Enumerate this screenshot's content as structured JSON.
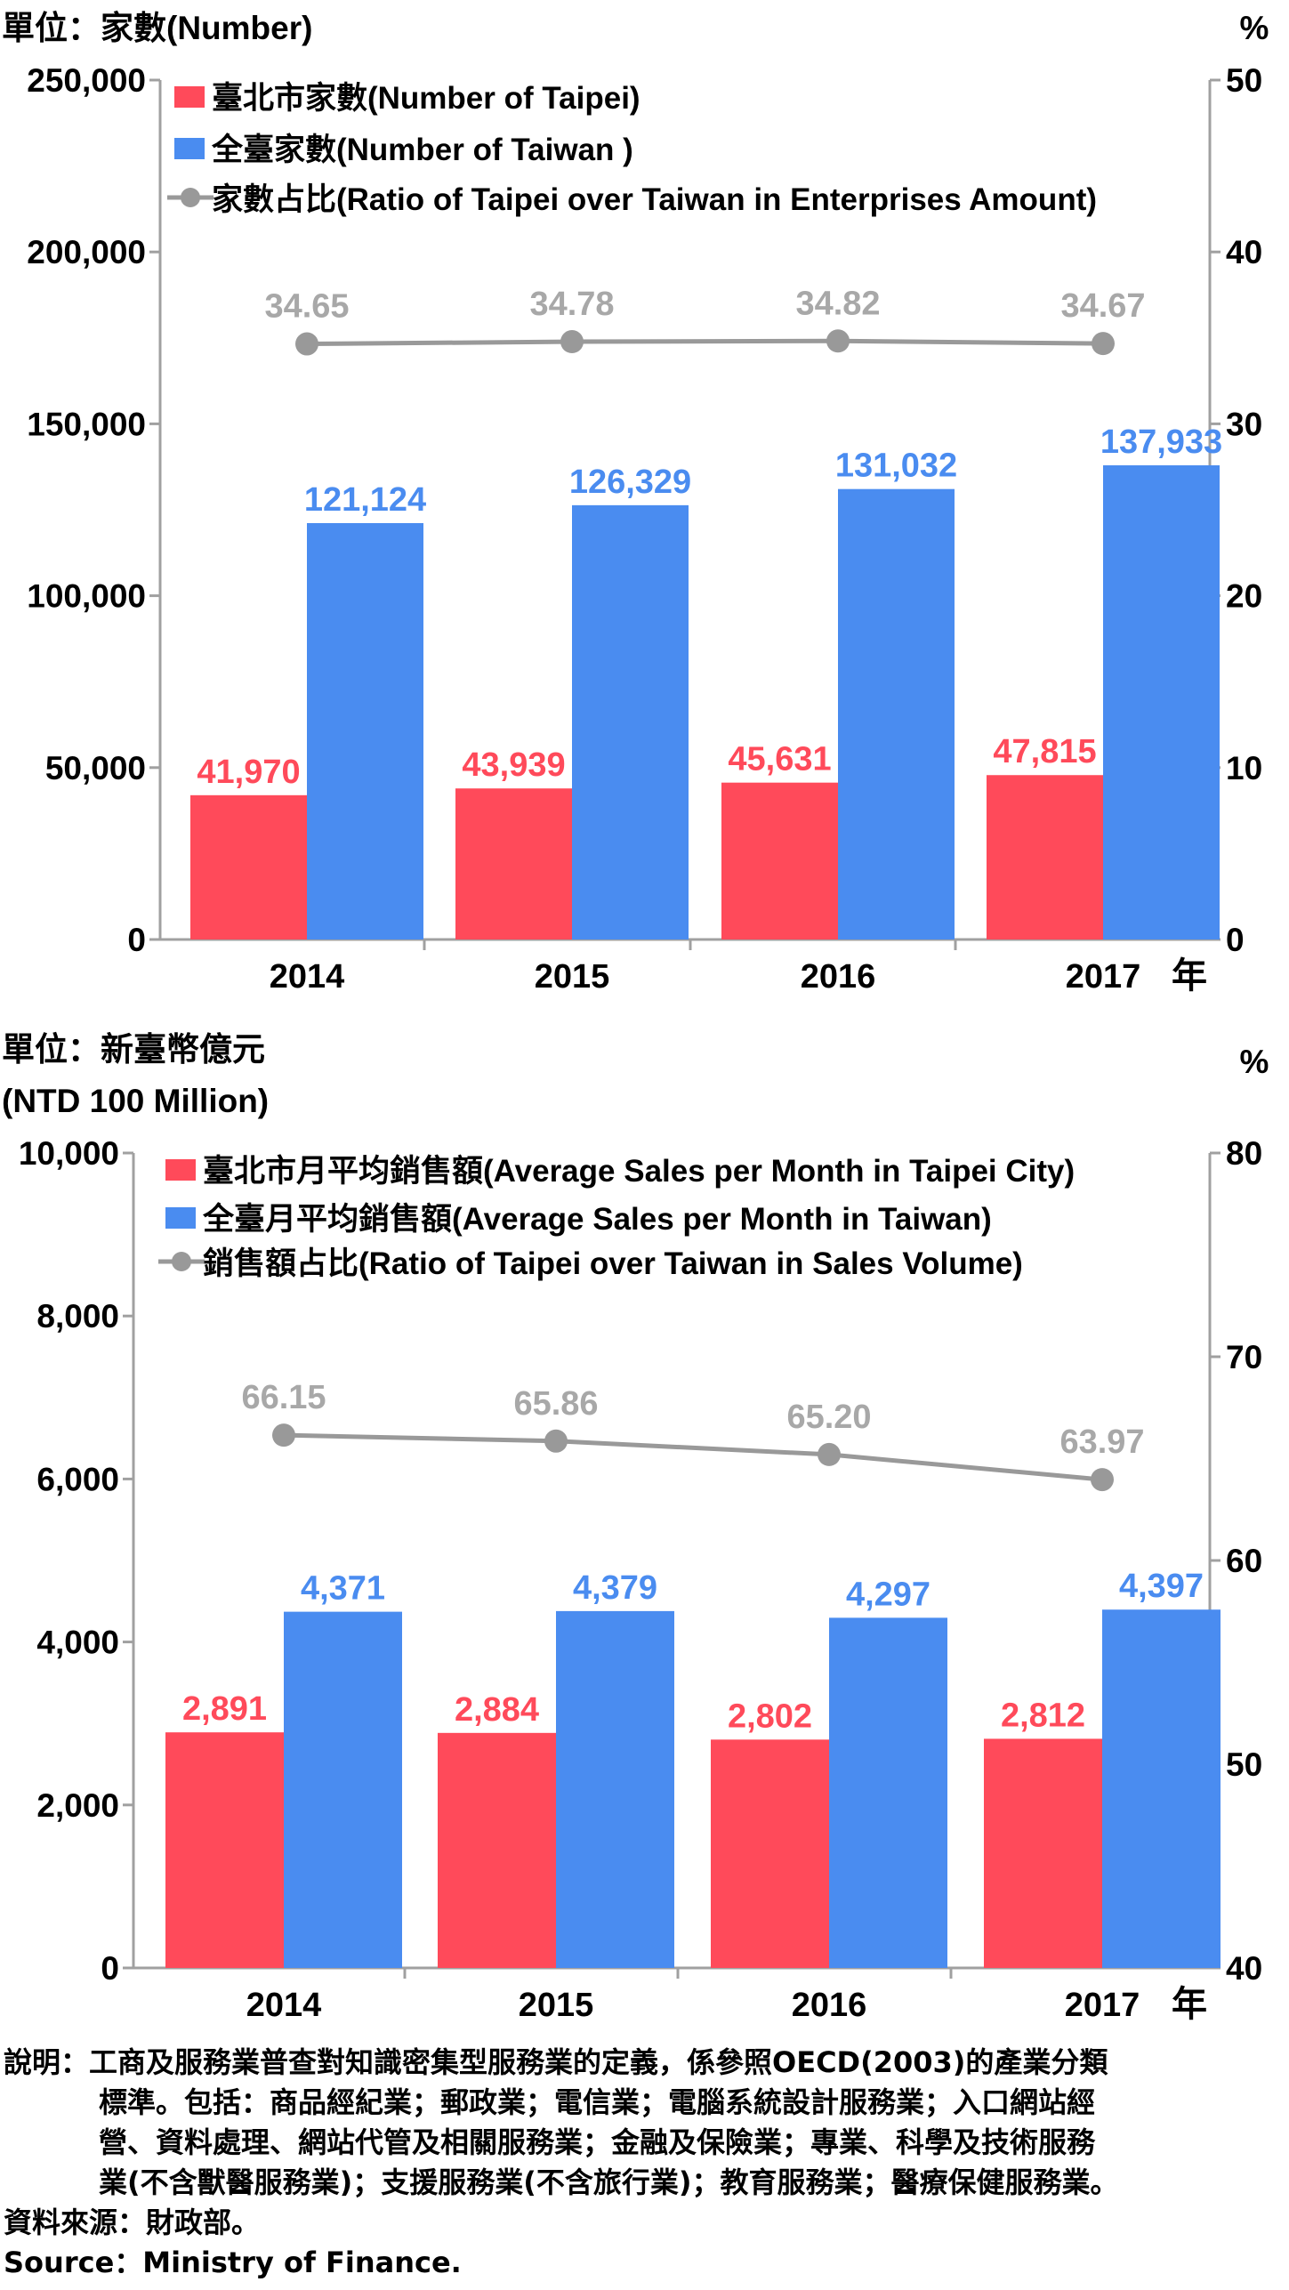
{
  "chart_data": [
    {
      "type": "bar",
      "unit_left": "單位：家數(Number)",
      "unit_right": "%",
      "categories": [
        "2014",
        "2015",
        "2016",
        "2017"
      ],
      "x_suffix": "年",
      "ylim": [
        0,
        250000
      ],
      "yticks": [
        "0",
        "50,000",
        "100,000",
        "150,000",
        "200,000",
        "250,000"
      ],
      "y2lim": [
        0,
        50
      ],
      "y2ticks": [
        "0",
        "10",
        "20",
        "30",
        "40",
        "50"
      ],
      "legend_position": "top",
      "series": [
        {
          "name": "臺北市家數(Number of  Taipei)",
          "kind": "bar",
          "axis": "left",
          "color": "#ff4a5a",
          "values": [
            41970,
            43939,
            45631,
            47815
          ],
          "labels": [
            "41,970",
            "43,939",
            "45,631",
            "47,815"
          ]
        },
        {
          "name": "全臺家數(Number of Taiwan )",
          "kind": "bar",
          "axis": "left",
          "color": "#4a8cf0",
          "values": [
            121124,
            126329,
            131032,
            137933
          ],
          "labels": [
            "121,124",
            "126,329",
            "131,032",
            "137,933"
          ]
        },
        {
          "name": "家數占比(Ratio of Taipei over Taiwan in Enterprises Amount)",
          "kind": "line",
          "axis": "right",
          "color": "#999999",
          "values": [
            34.65,
            34.78,
            34.82,
            34.67
          ],
          "labels": [
            "34.65",
            "34.78",
            "34.82",
            "34.67"
          ]
        }
      ]
    },
    {
      "type": "bar",
      "unit_left": "單位：新臺幣億元",
      "unit_left_2": "(NTD 100 Million)",
      "unit_right": "%",
      "categories": [
        "2014",
        "2015",
        "2016",
        "2017"
      ],
      "x_suffix": "年",
      "ylim": [
        0,
        10000
      ],
      "yticks": [
        "0",
        "2,000",
        "4,000",
        "6,000",
        "8,000",
        "10,000"
      ],
      "y2lim": [
        40,
        80
      ],
      "y2ticks": [
        "40",
        "50",
        "60",
        "70",
        "80"
      ],
      "legend_position": "top",
      "series": [
        {
          "name": "臺北市月平均銷售額(Average Sales per Month in Taipei City)",
          "kind": "bar",
          "axis": "left",
          "color": "#ff4a5a",
          "values": [
            2891,
            2884,
            2802,
            2812
          ],
          "labels": [
            "2,891",
            "2,884",
            "2,802",
            "2,812"
          ]
        },
        {
          "name": "全臺月平均銷售額(Average Sales per Month in Taiwan)",
          "kind": "bar",
          "axis": "left",
          "color": "#4a8cf0",
          "values": [
            4371,
            4379,
            4297,
            4397
          ],
          "labels": [
            "4,371",
            "4,379",
            "4,297",
            "4,397"
          ]
        },
        {
          "name": "銷售額占比(Ratio of Taipei over Taiwan in Sales Volume)",
          "kind": "line",
          "axis": "right",
          "color": "#999999",
          "values": [
            66.15,
            65.86,
            65.2,
            63.97
          ],
          "labels": [
            "66.15",
            "65.86",
            "65.20",
            "63.97"
          ]
        }
      ]
    }
  ],
  "notes": {
    "line1": "說明：工商及服務業普查對知識密集型服務業的定義，係參照OECD(2003)的產業分類",
    "line2": "標準。包括：商品經紀業；郵政業；電信業；電腦系統設計服務業；入口網站經",
    "line3": "營、資料處理、網站代管及相關服務業；金融及保險業；專業、科學及技術服務",
    "line4": "業(不含獸醫服務業)；支援服務業(不含旅行業)；教育服務業；醫療保健服務業。",
    "source_zh": "資料來源：財政部。",
    "source_en": "Source：Ministry of Finance."
  }
}
